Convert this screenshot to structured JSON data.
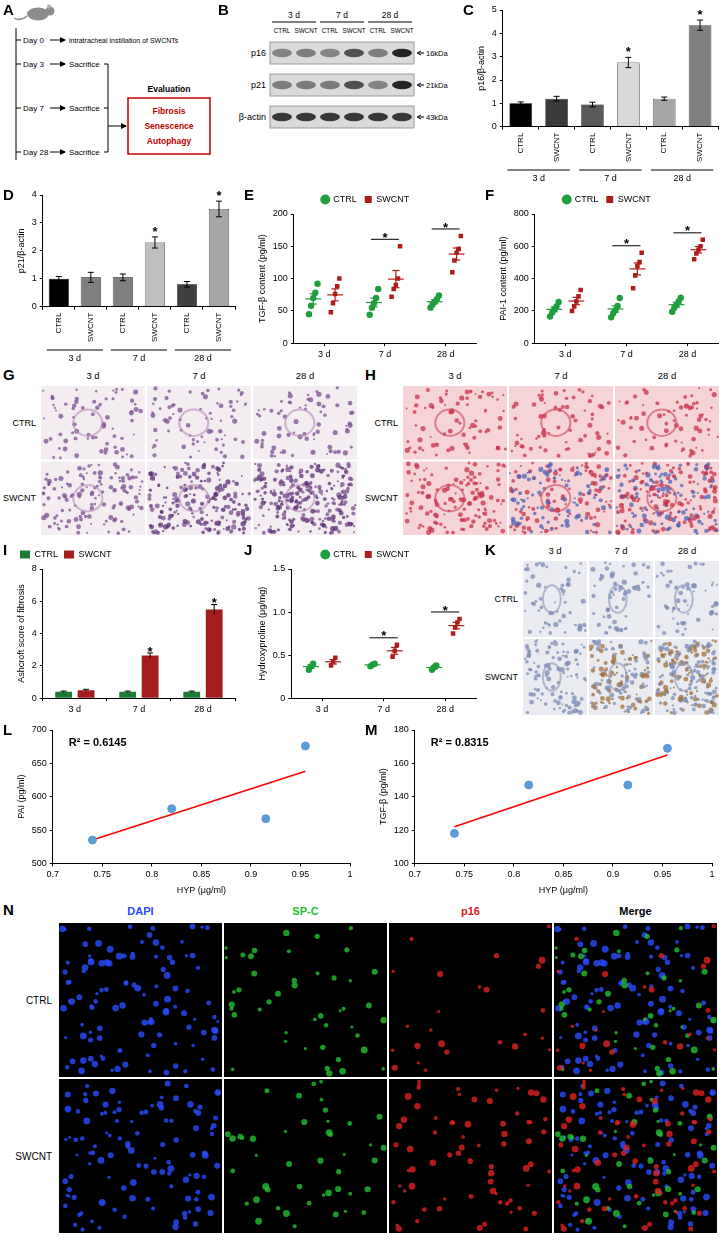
{
  "chart_data": [
    {
      "panel": "C",
      "type": "bar",
      "y_label": "p16/β-actin",
      "categories": [
        "CTRL",
        "SWCNT",
        "CTRL",
        "SWCNT",
        "CTRL",
        "SWCNT"
      ],
      "groups": [
        "3 d",
        "7 d",
        "28 d"
      ],
      "values": [
        1.0,
        1.2,
        0.95,
        2.75,
        1.2,
        4.35
      ],
      "errors": [
        0.06,
        0.1,
        0.1,
        0.22,
        0.07,
        0.22
      ],
      "colors": [
        "#000000",
        "#3a3a3a",
        "#5a5a5a",
        "#d9d9d9",
        "#a6a6a6",
        "#808080"
      ],
      "significance": [
        null,
        null,
        null,
        "*",
        null,
        "*"
      ],
      "ylim": [
        0,
        5
      ],
      "yticks": [
        0,
        1,
        2,
        3,
        4,
        5
      ],
      "grid": false
    },
    {
      "panel": "D",
      "type": "bar",
      "y_label": "p21/β-actin",
      "categories": [
        "CTRL",
        "SWCNT",
        "CTRL",
        "SWCNT",
        "CTRL",
        "SWCNT"
      ],
      "groups": [
        "3 d",
        "7 d",
        "28 d"
      ],
      "values": [
        1.0,
        1.05,
        1.05,
        2.3,
        0.8,
        3.5
      ],
      "errors": [
        0.08,
        0.18,
        0.12,
        0.2,
        0.1,
        0.28
      ],
      "colors": [
        "#000000",
        "#7f7f7f",
        "#7f7f7f",
        "#bfbfbf",
        "#404040",
        "#a6a6a6"
      ],
      "significance": [
        null,
        null,
        null,
        "*",
        null,
        "*"
      ],
      "ylim": [
        0,
        4
      ],
      "yticks": [
        0,
        1,
        2,
        3,
        4
      ],
      "grid": false
    },
    {
      "panel": "E",
      "type": "dot",
      "y_label": "TGF-β content (pg/ml)",
      "categories": [
        "3 d",
        "7 d",
        "28 d"
      ],
      "series": [
        {
          "name": "CTRL",
          "color": "#1e9e3e",
          "marker": "circle",
          "values": [
            [
              45,
              58,
              70,
              78,
              92
            ],
            [
              44,
              55,
              62,
              70,
              84
            ],
            [
              55,
              60,
              64,
              68,
              74
            ]
          ],
          "mean": [
            68.6,
            63,
            64.2
          ],
          "error": [
            8,
            6.7,
            3.2
          ]
        },
        {
          "name": "SWCNT",
          "color": "#b01c1c",
          "marker": "square",
          "values": [
            [
              48,
              62,
              76,
              88,
              100
            ],
            [
              72,
              84,
              90,
              100,
              150
            ],
            [
              110,
              128,
              140,
              146,
              166
            ]
          ],
          "mean": [
            74.8,
            99.2,
            138
          ],
          "error": [
            9.3,
            13.3,
            9.3
          ]
        }
      ],
      "significance": [
        null,
        "*",
        "*"
      ],
      "ylim": [
        0,
        200
      ],
      "yticks": [
        0,
        50,
        100,
        150,
        200
      ],
      "grid": false,
      "legend": "top"
    },
    {
      "panel": "F",
      "type": "dot",
      "y_label": "PAI-1 content (pg/ml)",
      "categories": [
        "3 d",
        "7 d",
        "28 d"
      ],
      "series": [
        {
          "name": "CTRL",
          "color": "#1e9e3e",
          "marker": "circle",
          "values": [
            [
              165,
              190,
              210,
              228,
              255
            ],
            [
              160,
              185,
              205,
              230,
              280
            ],
            [
              195,
              220,
              238,
              258,
              282
            ]
          ],
          "mean": [
            209.6,
            212,
            238.6
          ],
          "error": [
            15,
            20,
            15
          ]
        },
        {
          "name": "SWCNT",
          "color": "#b01c1c",
          "marker": "square",
          "values": [
            [
              200,
              228,
              258,
              290,
              330
            ],
            [
              340,
              420,
              478,
              502,
              560
            ],
            [
              520,
              556,
              578,
              600,
              640
            ]
          ],
          "mean": [
            261.2,
            460,
            578.8
          ],
          "error": [
            22.6,
            37,
            20
          ]
        }
      ],
      "significance": [
        null,
        "*",
        "*"
      ],
      "ylim": [
        0,
        800
      ],
      "yticks": [
        0,
        200,
        400,
        600,
        800
      ],
      "grid": false,
      "legend": "top"
    },
    {
      "panel": "I",
      "type": "bar",
      "y_label": "Ashcroft score of fibrosis",
      "categories": [
        "3 d",
        "7 d",
        "28 d"
      ],
      "series": [
        {
          "name": "CTRL",
          "color": "#1d7a35",
          "values": [
            0.4,
            0.4,
            0.4
          ],
          "errors": [
            0.04,
            0.04,
            0.04
          ]
        },
        {
          "name": "SWCNT",
          "color": "#a51c1c",
          "values": [
            0.5,
            2.65,
            5.5
          ],
          "errors": [
            0.05,
            0.15,
            0.3
          ],
          "significance": [
            null,
            "*",
            "*"
          ]
        }
      ],
      "ylim": [
        0,
        8
      ],
      "yticks": [
        0,
        2,
        4,
        6,
        8
      ],
      "grid": false,
      "legend": "top-left"
    },
    {
      "panel": "J",
      "type": "dot",
      "y_label": "Hydroxyproline (μg/mg)",
      "categories": [
        "3 d",
        "7 d",
        "28 d"
      ],
      "series": [
        {
          "name": "CTRL",
          "color": "#1e9e3e",
          "marker": "circle",
          "values": [
            [
              0.33,
              0.37,
              0.4
            ],
            [
              0.37,
              0.39,
              0.4
            ],
            [
              0.33,
              0.36,
              0.38
            ]
          ],
          "mean": [
            0.367,
            0.387,
            0.357
          ],
          "error": [
            0.02,
            0.009,
            0.015
          ]
        },
        {
          "name": "SWCNT",
          "color": "#b01c1c",
          "marker": "square",
          "values": [
            [
              0.38,
              0.42,
              0.47
            ],
            [
              0.48,
              0.55,
              0.62
            ],
            [
              0.75,
              0.82,
              0.88,
              0.92
            ]
          ],
          "mean": [
            0.423,
            0.55,
            0.843
          ],
          "error": [
            0.026,
            0.04,
            0.037
          ]
        }
      ],
      "significance": [
        null,
        "*",
        "*"
      ],
      "ylim": [
        0,
        1.5
      ],
      "yticks": [
        0,
        0.5,
        {
          "value": 1,
          "label": "1.0"
        },
        1.5
      ],
      "grid": false,
      "legend": "top"
    },
    {
      "panel": "L",
      "type": "scatter",
      "x_label": "HYP (μg/ml)",
      "y_label": "PAI (pg/ml)",
      "x": [
        0.74,
        0.82,
        0.915,
        0.955
      ],
      "values": [
        535,
        582,
        567,
        676
      ],
      "color": "#5b9bd5",
      "marker": "circle",
      "fit_line": {
        "x": [
          0.74,
          0.955
        ],
        "values": [
          535,
          638
        ],
        "color": "#ff0000",
        "line_style": "solid"
      },
      "annotations": [
        "R² = 0.6145"
      ],
      "xlim": [
        0.7,
        1
      ],
      "xticks": [
        0.7,
        0.75,
        0.8,
        0.85,
        0.9,
        0.95,
        1
      ],
      "ylim": [
        500,
        700
      ],
      "yticks": [
        500,
        550,
        600,
        650,
        700
      ],
      "grid": false
    },
    {
      "panel": "M",
      "type": "scatter",
      "x_label": "HYP (μg/ml)",
      "y_label": "TGF-β (pg/ml)",
      "x": [
        0.74,
        0.815,
        0.915,
        0.955
      ],
      "values": [
        118,
        147,
        147,
        169
      ],
      "color": "#5b9bd5",
      "marker": "circle",
      "fit_line": {
        "x": [
          0.74,
          0.955
        ],
        "values": [
          122,
          165
        ],
        "color": "#ff0000",
        "line_style": "solid"
      },
      "annotations": [
        "R² = 0.8315"
      ],
      "xlim": [
        0.7,
        1
      ],
      "xticks": [
        0.7,
        0.75,
        0.8,
        0.85,
        0.9,
        0.95,
        1
      ],
      "ylim": [
        100,
        180
      ],
      "yticks": [
        100,
        120,
        140,
        160,
        180
      ],
      "grid": false
    }
  ],
  "figure_panels": {
    "A": {
      "panel": "A",
      "timeline": [
        {
          "day": "Day 0",
          "event": "intratracheal instillation of SWCNTs"
        },
        {
          "day": "Day 3",
          "event": "Sacrifice"
        },
        {
          "day": "Day 7",
          "event": "Sacrifice"
        },
        {
          "day": "Day 28",
          "event": "Sacrifice"
        }
      ],
      "evaluation": "Evaluation",
      "endpoints": [
        "Fibrosis",
        "Senescence",
        "Autophagy"
      ]
    },
    "B": {
      "panel": "B",
      "groups": [
        "3 d",
        "7 d",
        "28 d"
      ],
      "lanes": [
        "CTRL",
        "SWCNT",
        "CTRL",
        "SWCNT",
        "CTRL",
        "SWCNT"
      ],
      "rows": [
        {
          "protein": "p16",
          "size": "16kDa"
        },
        {
          "protein": "p21",
          "size": "21kDa"
        },
        {
          "protein": "β-actin",
          "size": "43kDa"
        }
      ]
    },
    "G": {
      "panel": "G",
      "columns": [
        "3 d",
        "7 d",
        "28 d"
      ],
      "rows": [
        "CTRL",
        "SWCNT"
      ]
    },
    "H": {
      "panel": "H",
      "columns": [
        "3 d",
        "7 d",
        "28 d"
      ],
      "rows": [
        "CTRL",
        "SWCNT"
      ]
    },
    "K": {
      "panel": "K",
      "columns": [
        "3 d",
        "7 d",
        "28 d"
      ],
      "rows": [
        "CTRL",
        "SWCNT"
      ]
    },
    "N": {
      "panel": "N",
      "columns": [
        {
          "name": "DAPI",
          "color": "#2a4bff"
        },
        {
          "name": "SP-C",
          "color": "#22c033"
        },
        {
          "name": "p16",
          "color": "#e02020"
        },
        {
          "name": "Merge",
          "color": "#000000"
        }
      ],
      "rows": [
        "CTRL",
        "SWCNT"
      ]
    }
  }
}
